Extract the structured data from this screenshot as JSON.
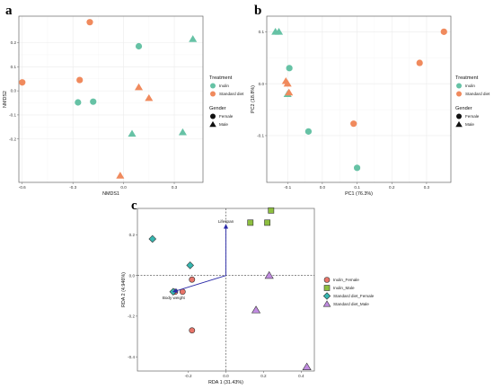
{
  "panels": {
    "a": "a",
    "b": "b",
    "c": "c"
  },
  "chart_data": [
    {
      "type": "scatter",
      "panel": "a",
      "xlabel": "NMDS1",
      "ylabel": "NMDS2",
      "xlim": [
        -0.62,
        0.47
      ],
      "ylim": [
        -0.38,
        0.31
      ],
      "x_ticks": [
        "-0.6",
        "-0.3",
        "0.0",
        "0.3"
      ],
      "x_tick_values": [
        -0.6,
        -0.3,
        0.0,
        0.3
      ],
      "y_ticks": [
        "0.2",
        "0.1",
        "0.0",
        "-0.1",
        "-0.2"
      ],
      "y_tick_values": [
        0.2,
        0.1,
        0.0,
        -0.1,
        -0.2
      ],
      "grid": true,
      "colors": {
        "Inulin": "#66c2a5",
        "Standard diet": "#f08a5d"
      },
      "legend": {
        "position": "right",
        "treatment_title": "Treatment",
        "treatment_items": [
          "Inulin",
          "Standard diet"
        ],
        "gender_title": "Gender",
        "gender_items": [
          "Female",
          "Male"
        ]
      },
      "points": [
        {
          "x": -0.2,
          "y": 0.285,
          "treatment": "Standard diet",
          "gender": "Female"
        },
        {
          "x": 0.41,
          "y": 0.215,
          "treatment": "Inulin",
          "gender": "Male"
        },
        {
          "x": 0.09,
          "y": 0.185,
          "treatment": "Inulin",
          "gender": "Female"
        },
        {
          "x": -0.6,
          "y": 0.035,
          "treatment": "Standard diet",
          "gender": "Female"
        },
        {
          "x": -0.26,
          "y": 0.045,
          "treatment": "Standard diet",
          "gender": "Female"
        },
        {
          "x": 0.09,
          "y": 0.015,
          "treatment": "Standard diet",
          "gender": "Male"
        },
        {
          "x": 0.15,
          "y": -0.03,
          "treatment": "Standard diet",
          "gender": "Male"
        },
        {
          "x": -0.18,
          "y": -0.045,
          "treatment": "Inulin",
          "gender": "Female"
        },
        {
          "x": -0.27,
          "y": -0.048,
          "treatment": "Inulin",
          "gender": "Female"
        },
        {
          "x": 0.05,
          "y": -0.178,
          "treatment": "Inulin",
          "gender": "Male"
        },
        {
          "x": 0.35,
          "y": -0.172,
          "treatment": "Inulin",
          "gender": "Male"
        },
        {
          "x": -0.02,
          "y": -0.352,
          "treatment": "Standard diet",
          "gender": "Male"
        }
      ]
    },
    {
      "type": "scatter",
      "panel": "b",
      "xlabel": "PC1 (76.3%)",
      "ylabel": "PC2 (18.8%)",
      "xlim": [
        -0.16,
        0.37
      ],
      "ylim": [
        -0.19,
        0.13
      ],
      "x_ticks": [
        "-0.1",
        "0.0",
        "0.1",
        "0.2",
        "0.3"
      ],
      "x_tick_values": [
        -0.1,
        0.0,
        0.1,
        0.2,
        0.3
      ],
      "y_ticks": [
        "0.1",
        "0.0",
        "-0.1"
      ],
      "y_tick_values": [
        0.1,
        0.0,
        -0.1
      ],
      "grid": true,
      "colors": {
        "Inulin": "#66c2a5",
        "Standard diet": "#f08a5d"
      },
      "legend": {
        "position": "right",
        "treatment_title": "Treatment",
        "treatment_items": [
          "Inulin",
          "Standard diet"
        ],
        "gender_title": "Gender",
        "gender_items": [
          "Female",
          "Male"
        ]
      },
      "points": [
        {
          "x": -0.135,
          "y": 0.1,
          "treatment": "Inulin",
          "gender": "Male"
        },
        {
          "x": -0.125,
          "y": 0.1,
          "treatment": "Inulin",
          "gender": "Male"
        },
        {
          "x": 0.35,
          "y": 0.1,
          "treatment": "Standard diet",
          "gender": "Female"
        },
        {
          "x": 0.28,
          "y": 0.04,
          "treatment": "Standard diet",
          "gender": "Female"
        },
        {
          "x": -0.095,
          "y": 0.03,
          "treatment": "Inulin",
          "gender": "Female"
        },
        {
          "x": -0.105,
          "y": 0.005,
          "treatment": "Standard diet",
          "gender": "Male"
        },
        {
          "x": -0.1,
          "y": 0.0,
          "treatment": "Standard diet",
          "gender": "Male"
        },
        {
          "x": -0.1,
          "y": -0.02,
          "treatment": "Inulin",
          "gender": "Male"
        },
        {
          "x": -0.096,
          "y": -0.017,
          "treatment": "Standard diet",
          "gender": "Male"
        },
        {
          "x": 0.09,
          "y": -0.077,
          "treatment": "Standard diet",
          "gender": "Female"
        },
        {
          "x": -0.04,
          "y": -0.092,
          "treatment": "Inulin",
          "gender": "Female"
        },
        {
          "x": 0.1,
          "y": -0.162,
          "treatment": "Inulin",
          "gender": "Female"
        }
      ]
    },
    {
      "type": "scatter",
      "panel": "c",
      "xlabel": "RDA 1 (31.43%)",
      "ylabel": "RDA 2 (4.946%)",
      "xlim": [
        -0.47,
        0.47
      ],
      "ylim": [
        -0.47,
        0.33
      ],
      "x_ticks": [
        "-0.2",
        "0.0",
        "0.2",
        "0.4"
      ],
      "x_tick_values": [
        -0.2,
        0.0,
        0.2,
        0.4
      ],
      "y_ticks": [
        "0.2",
        "0.0",
        "-0.2",
        "-0.4"
      ],
      "y_tick_values": [
        0.2,
        0.0,
        -0.2,
        -0.4
      ],
      "grid": false,
      "reference_lines": {
        "x": 0,
        "y": 0
      },
      "legend": {
        "position": "right",
        "items": [
          {
            "label": "Inulin_Female",
            "color": "#e8756a",
            "shape": "circle"
          },
          {
            "label": "Inulin_Male",
            "color": "#8dbf3f",
            "shape": "square"
          },
          {
            "label": "Standard diet_Female",
            "color": "#36b7b0",
            "shape": "diamond"
          },
          {
            "label": "Standard diet_Male",
            "color": "#c08be0",
            "shape": "triangle"
          }
        ]
      },
      "vectors": [
        {
          "label": "Lifespan",
          "x": 0.0,
          "y": 0.25
        },
        {
          "label": "Body weight",
          "x": -0.28,
          "y": -0.08
        }
      ],
      "points": [
        {
          "x": -0.18,
          "y": -0.02,
          "group": "Inulin_Female"
        },
        {
          "x": -0.27,
          "y": -0.08,
          "group": "Inulin_Female"
        },
        {
          "x": -0.23,
          "y": -0.08,
          "group": "Inulin_Female"
        },
        {
          "x": -0.18,
          "y": -0.27,
          "group": "Inulin_Female"
        },
        {
          "x": 0.13,
          "y": 0.26,
          "group": "Inulin_Male"
        },
        {
          "x": 0.22,
          "y": 0.26,
          "group": "Inulin_Male"
        },
        {
          "x": 0.24,
          "y": 0.32,
          "group": "Inulin_Male"
        },
        {
          "x": -0.39,
          "y": 0.18,
          "group": "Standard diet_Female"
        },
        {
          "x": -0.19,
          "y": 0.05,
          "group": "Standard diet_Female"
        },
        {
          "x": -0.28,
          "y": -0.08,
          "group": "Standard diet_Female"
        },
        {
          "x": 0.23,
          "y": 0.0,
          "group": "Standard diet_Male"
        },
        {
          "x": 0.16,
          "y": -0.17,
          "group": "Standard diet_Male"
        },
        {
          "x": 0.43,
          "y": -0.45,
          "group": "Standard diet_Male"
        }
      ]
    }
  ]
}
